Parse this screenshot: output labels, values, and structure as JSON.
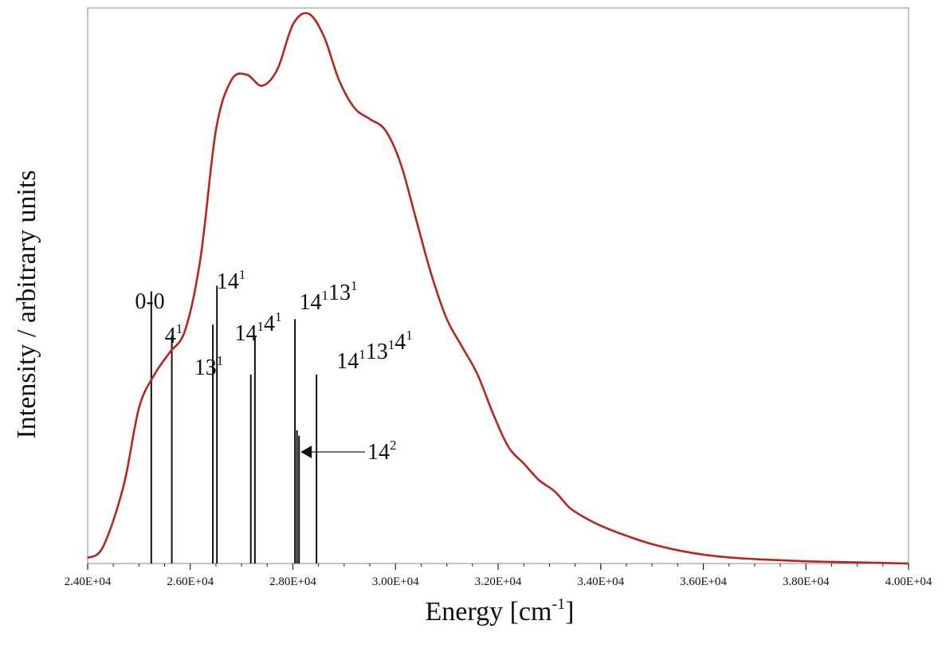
{
  "chart_data": {
    "type": "line",
    "xlabel": "Energy [cm",
    "xlabel_sup": "-1",
    "xlabel_suffix": "]",
    "ylabel": "Intensity / arbitrary units",
    "xlim": [
      24000,
      40000
    ],
    "ylim": [
      0,
      1.0
    ],
    "yticks_visible": false,
    "x_ticks": [
      24000,
      26000,
      28000,
      30000,
      32000,
      34000,
      36000,
      38000,
      40000
    ],
    "x_tick_labels": [
      "2.40E+04",
      "2.60E+04",
      "2.80E+04",
      "3.00E+04",
      "3.20E+04",
      "3.40E+04",
      "3.60E+04",
      "3.80E+04",
      "4.00E+04"
    ],
    "series": [
      {
        "color": "#b5271e",
        "x": [
          24000,
          24300,
          24700,
          25000,
          25300,
          25600,
          25900,
          26200,
          26500,
          26800,
          27100,
          27400,
          27700,
          28000,
          28300,
          28600,
          28900,
          29200,
          29500,
          29800,
          30100,
          30400,
          30700,
          31000,
          31300,
          31600,
          31900,
          32200,
          32500,
          32800,
          33100,
          33400,
          33700,
          34000,
          34500,
          35000,
          35500,
          36000,
          36500,
          37000,
          37500,
          38000,
          38500,
          39000,
          39500,
          40000
        ],
        "y": [
          0.01,
          0.03,
          0.14,
          0.28,
          0.34,
          0.38,
          0.42,
          0.55,
          0.78,
          0.87,
          0.88,
          0.86,
          0.89,
          0.97,
          0.99,
          0.95,
          0.87,
          0.82,
          0.8,
          0.78,
          0.72,
          0.62,
          0.52,
          0.44,
          0.39,
          0.34,
          0.27,
          0.21,
          0.18,
          0.15,
          0.13,
          0.1,
          0.082,
          0.068,
          0.05,
          0.035,
          0.024,
          0.016,
          0.011,
          0.008,
          0.006,
          0.004,
          0.003,
          0.002,
          0.001,
          0.0
        ]
      }
    ],
    "stick_color": "#111111",
    "sticks": [
      {
        "x": 25240,
        "y": 0.49
      },
      {
        "x": 25640,
        "y": 0.41
      },
      {
        "x": 26440,
        "y": 0.43
      },
      {
        "x": 26520,
        "y": 0.5
      },
      {
        "x": 27180,
        "y": 0.34
      },
      {
        "x": 27260,
        "y": 0.41
      },
      {
        "x": 28040,
        "y": 0.44
      },
      {
        "x": 28080,
        "y": 0.24
      },
      {
        "x": 28120,
        "y": 0.23
      },
      {
        "x": 28460,
        "y": 0.34
      }
    ],
    "annotations": [
      {
        "base": "0-0",
        "sup": ""
      },
      {
        "base": "4",
        "sup": "1"
      },
      {
        "base": "13",
        "sup": "1"
      },
      {
        "base": "14",
        "sup": "1"
      },
      {
        "base": "14",
        "sup": "1",
        "base2": "4",
        "sup2": "1"
      },
      {
        "base": "14",
        "sup": "1",
        "base2": "13",
        "sup2": "1"
      },
      {
        "base": "14",
        "sup": "1",
        "base2": "13",
        "sup2": "1",
        "base3": "4",
        "sup3": "1"
      },
      {
        "base": "14",
        "sup": "2"
      }
    ]
  }
}
